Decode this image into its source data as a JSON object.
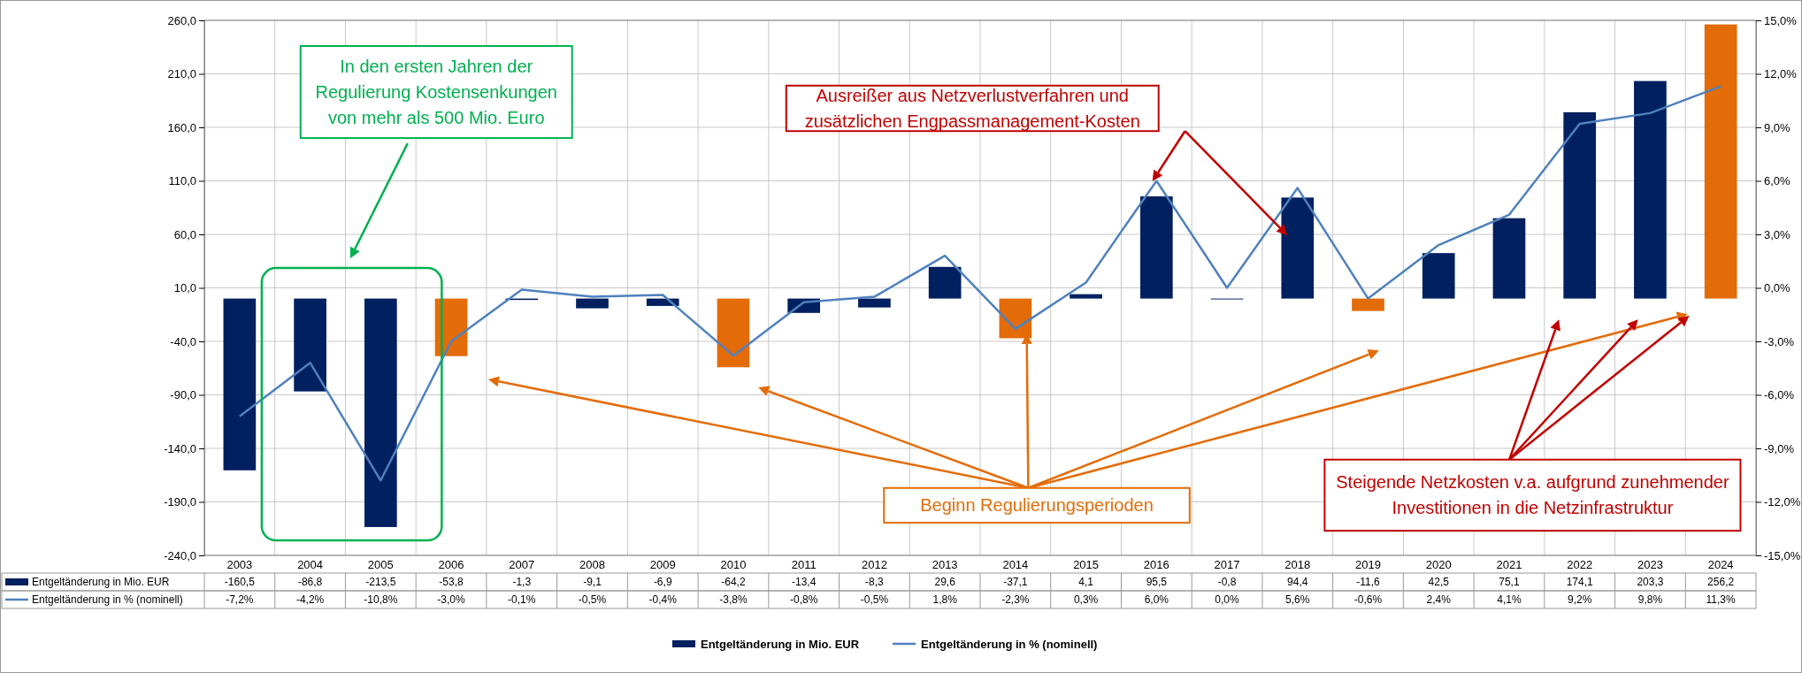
{
  "chart_data": {
    "type": "bar",
    "categories": [
      "2003",
      "2004",
      "2005",
      "2006",
      "2007",
      "2008",
      "2009",
      "2010",
      "2011",
      "2012",
      "2013",
      "2014",
      "2015",
      "2016",
      "2017",
      "2018",
      "2019",
      "2020",
      "2021",
      "2022",
      "2023",
      "2024"
    ],
    "series": [
      {
        "name": "Entgeltänderung in Mio. EUR",
        "color": "#002060",
        "colors": [
          "#002060",
          "#002060",
          "#002060",
          "#e36c09",
          "#002060",
          "#002060",
          "#002060",
          "#e36c09",
          "#002060",
          "#002060",
          "#002060",
          "#e36c09",
          "#002060",
          "#002060",
          "#002060",
          "#002060",
          "#e36c09",
          "#002060",
          "#002060",
          "#002060",
          "#002060",
          "#e36c09"
        ],
        "values": [
          -160.5,
          -86.8,
          -213.5,
          -53.8,
          -1.3,
          -9.1,
          -6.9,
          -64.2,
          -13.4,
          -8.3,
          29.6,
          -37.1,
          4.1,
          95.5,
          -0.8,
          94.4,
          -11.6,
          42.5,
          75.1,
          174.1,
          203.3,
          256.2
        ],
        "value_labels": [
          "-160,5",
          "-86,8",
          "-213,5",
          "-53,8",
          "-1,3",
          "-9,1",
          "-6,9",
          "-64,2",
          "-13,4",
          "-8,3",
          "29,6",
          "-37,1",
          "4,1",
          "95,5",
          "-0,8",
          "94,4",
          "-11,6",
          "42,5",
          "75,1",
          "174,1",
          "203,3",
          "256,2"
        ]
      },
      {
        "name": "Entgeltänderung in % (nominell)",
        "type": "line",
        "axis": "y2",
        "color": "#4f81bd",
        "values": [
          -7.2,
          -4.2,
          -10.8,
          -3.0,
          -0.1,
          -0.5,
          -0.4,
          -3.8,
          -0.8,
          -0.5,
          1.8,
          -2.3,
          0.3,
          6.0,
          0.0,
          5.6,
          -0.6,
          2.4,
          4.1,
          9.2,
          9.8,
          11.3
        ],
        "value_labels": [
          "-7,2%",
          "-4,2%",
          "-10,8%",
          "-3,0%",
          "-0,1%",
          "-0,5%",
          "-0,4%",
          "-3,8%",
          "-0,8%",
          "-0,5%",
          "1,8%",
          "-2,3%",
          "0,3%",
          "6,0%",
          "0,0%",
          "5,6%",
          "-0,6%",
          "2,4%",
          "4,1%",
          "9,2%",
          "9,8%",
          "11,3%"
        ]
      }
    ],
    "ylim": [
      -240,
      260
    ],
    "yticks": [
      {
        "value": -240,
        "label": "-240,0"
      },
      {
        "value": -190,
        "label": "-190,0"
      },
      {
        "value": -140,
        "label": "-140,0"
      },
      {
        "value": -90,
        "label": "-90,0"
      },
      {
        "value": -40,
        "label": "-40,0"
      },
      {
        "value": 10,
        "label": "10,0"
      },
      {
        "value": 60,
        "label": "60,0"
      },
      {
        "value": 110,
        "label": "110,0"
      },
      {
        "value": 160,
        "label": "160,0"
      },
      {
        "value": 210,
        "label": "210,0"
      },
      {
        "value": 260,
        "label": "260,0"
      }
    ],
    "y2lim": [
      -15,
      15
    ],
    "y2ticks": [
      {
        "value": -15,
        "label": "-15,0%"
      },
      {
        "value": -12,
        "label": "-12,0%"
      },
      {
        "value": -9,
        "label": "-9,0%"
      },
      {
        "value": -6,
        "label": "-6,0%"
      },
      {
        "value": -3,
        "label": "-3,0%"
      },
      {
        "value": 0,
        "label": "0,0%"
      },
      {
        "value": 3,
        "label": "3,0%"
      },
      {
        "value": 6,
        "label": "6,0%"
      },
      {
        "value": 9,
        "label": "9,0%"
      },
      {
        "value": 12,
        "label": "12,0%"
      },
      {
        "value": 15,
        "label": "15,0%"
      }
    ],
    "grid": true,
    "legend": "bottom",
    "data_labels": true,
    "annotations": [
      "In den ersten Jahren der\nRegulierung Kostensenkungen\nvon mehr als 500 Mio. Euro",
      "Ausreißer aus Netzverlustverfahren und\nzusätzlichen Engpassmanagement-Kosten",
      "Beginn Regulierungsperioden",
      "Steigende Netzkosten v.a. aufgrund zunehmender\nInvestitionen in die Netzinfrastruktur"
    ]
  }
}
